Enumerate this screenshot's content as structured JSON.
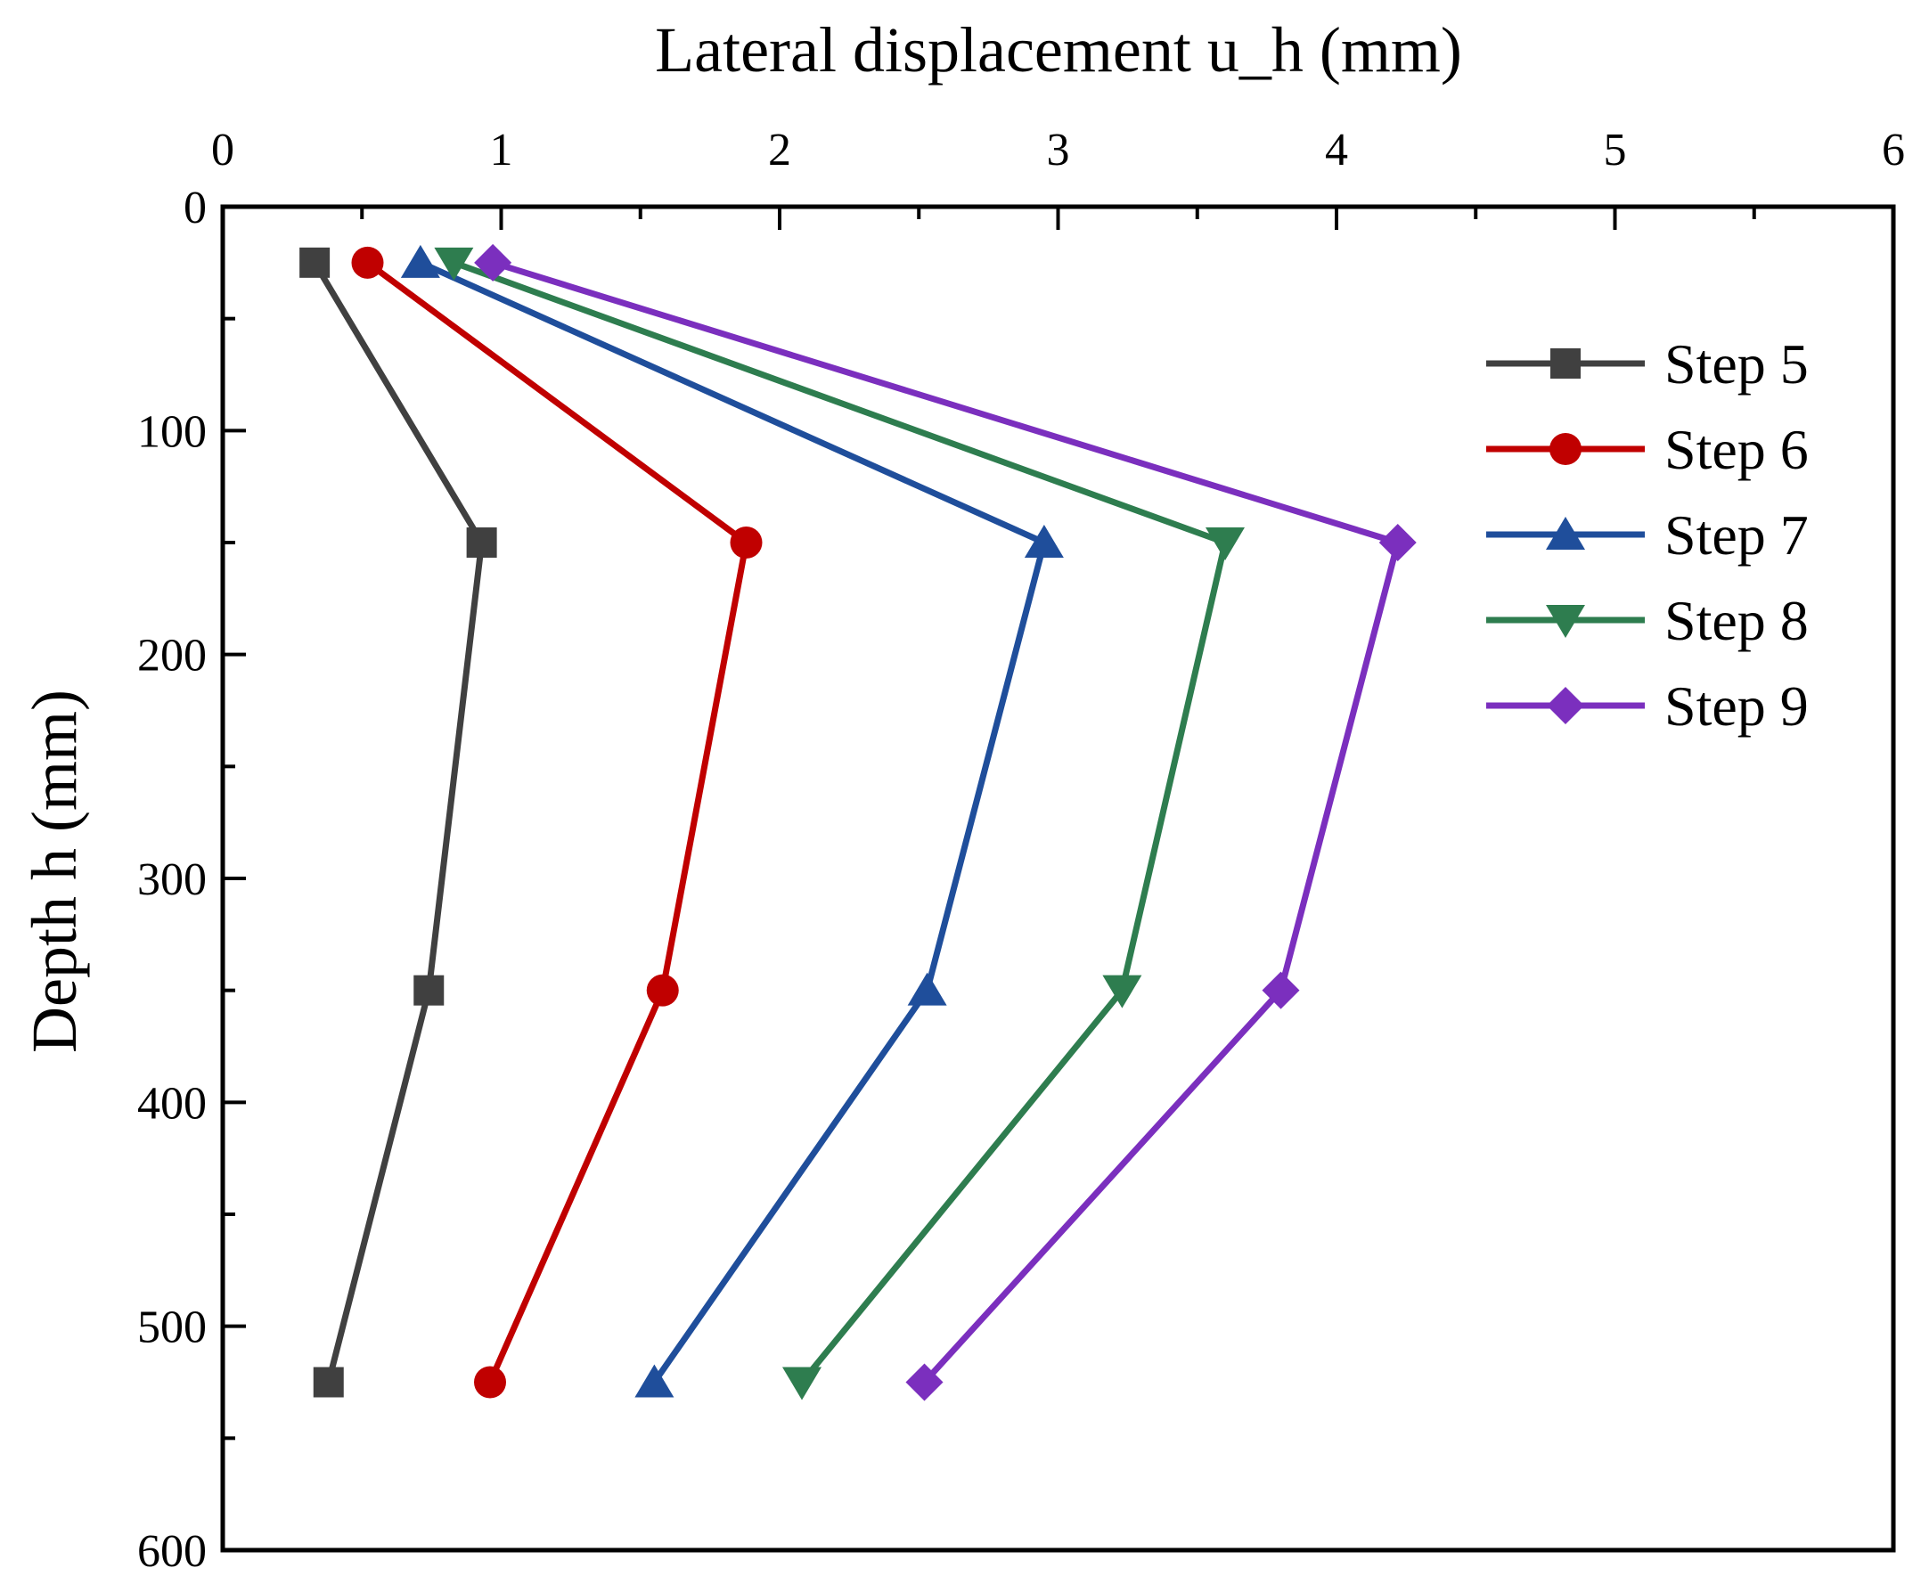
{
  "chart_data": {
    "type": "line",
    "xlabel": "Lateral displacement u_h (mm)",
    "ylabel": "Depth h (mm)",
    "xlim": [
      0,
      6
    ],
    "ylim": [
      0,
      600
    ],
    "y_inverted": true,
    "x_axis_position": "top",
    "x_ticks": [
      0,
      1,
      2,
      3,
      4,
      5,
      6
    ],
    "y_ticks": [
      0,
      100,
      200,
      300,
      400,
      500,
      600
    ],
    "x_tick_labels": [
      "0",
      "1",
      "2",
      "3",
      "4",
      "5",
      "6"
    ],
    "y_tick_labels": [
      "0",
      "100",
      "200",
      "300",
      "400",
      "500",
      "600"
    ],
    "legend_position": "top-right",
    "depths": [
      25,
      150,
      350,
      525
    ],
    "series": [
      {
        "name": "Step 5",
        "color": "#404040",
        "marker": "square",
        "x": [
          0.33,
          0.93,
          0.74,
          0.38
        ]
      },
      {
        "name": "Step 6",
        "color": "#c00000",
        "marker": "circle",
        "x": [
          0.52,
          1.88,
          1.58,
          0.96
        ]
      },
      {
        "name": "Step 7",
        "color": "#1f4e9b",
        "marker": "triangle-up",
        "x": [
          0.71,
          2.95,
          2.53,
          1.55
        ]
      },
      {
        "name": "Step 8",
        "color": "#2e7d4f",
        "marker": "triangle-down",
        "x": [
          0.83,
          3.6,
          3.23,
          2.08
        ]
      },
      {
        "name": "Step 9",
        "color": "#7b2fbe",
        "marker": "diamond",
        "x": [
          0.97,
          4.22,
          3.8,
          2.52
        ]
      }
    ]
  }
}
